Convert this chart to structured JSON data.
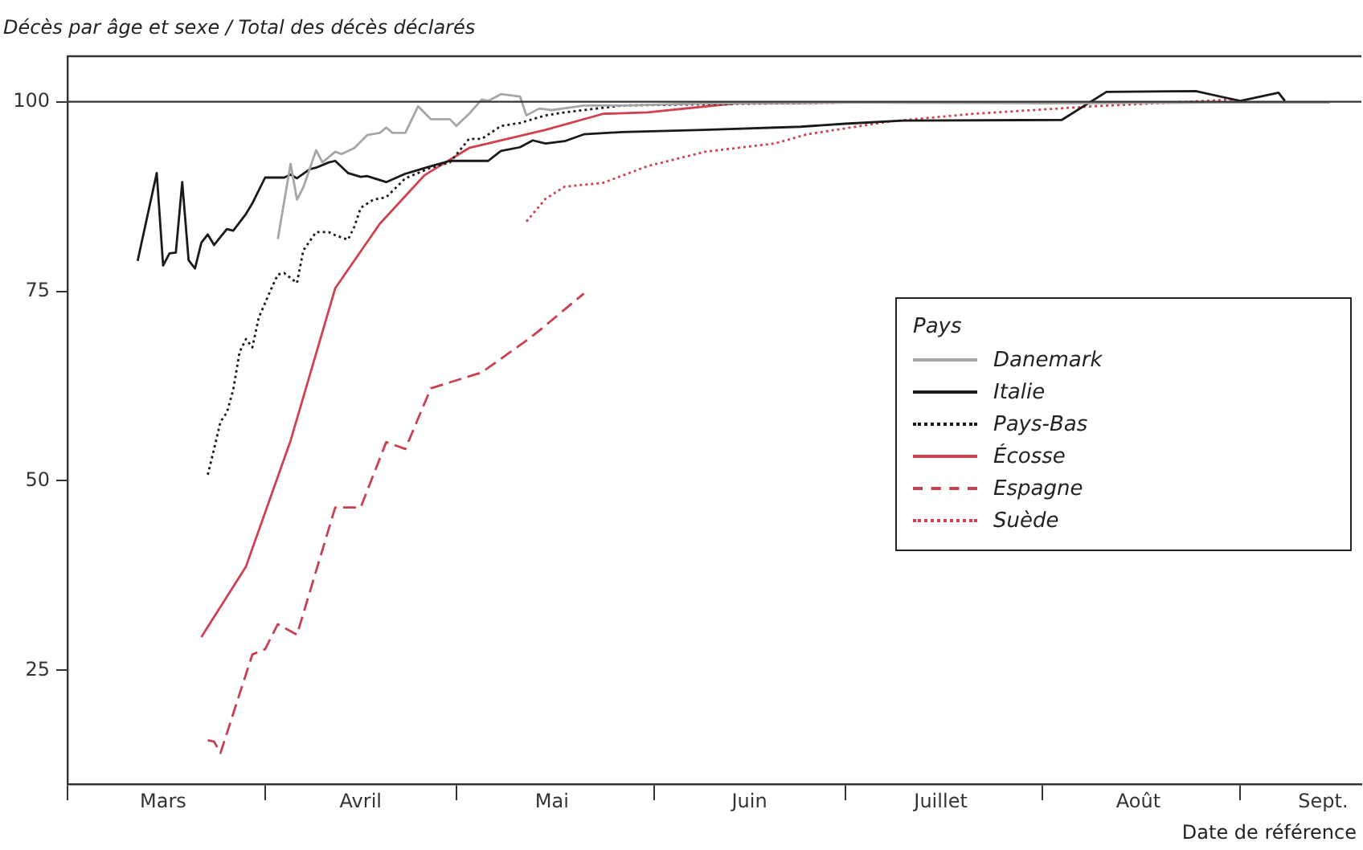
{
  "chart_data": {
    "type": "line",
    "title": "Décès par âge et sexe / Total des décès déclarés",
    "xlabel": "Date de référence",
    "legend_title": "Pays",
    "legend": "right",
    "grid": false,
    "marker": "none",
    "xlim": [
      "--03-01",
      "--09-20"
    ],
    "xticks": [
      {
        "value": "--03-01",
        "label": null
      },
      {
        "value": "--03-16",
        "label": "Mars"
      },
      {
        "value": "--04-01",
        "label": null
      },
      {
        "value": "--04-16",
        "label": "Avril"
      },
      {
        "value": "--05-01",
        "label": null
      },
      {
        "value": "--05-16",
        "label": "Mai"
      },
      {
        "value": "--06-01",
        "label": null
      },
      {
        "value": "--06-16",
        "label": "Juin"
      },
      {
        "value": "--07-01",
        "label": null
      },
      {
        "value": "--07-16",
        "label": "Juillet"
      },
      {
        "value": "--08-01",
        "label": null
      },
      {
        "value": "--08-16",
        "label": "Août"
      },
      {
        "value": "--09-01",
        "label": null
      },
      {
        "value": "--09-14",
        "label": "Sept."
      }
    ],
    "ylim": [
      10,
      106
    ],
    "yticks": [
      25,
      50,
      75,
      100
    ],
    "ref_lines": [
      {
        "axis": "y",
        "value": 100,
        "color": "#333333"
      }
    ],
    "series": [
      {
        "name": "Danemark",
        "color": "#a6a6a6",
        "line_style": "solid",
        "x": [
          "--04-03",
          "--04-05",
          "--04-06",
          "--04-07",
          "--04-09",
          "--04-10",
          "--04-12",
          "--04-13",
          "--04-15",
          "--04-17",
          "--04-19",
          "--04-20",
          "--04-21",
          "--04-23",
          "--04-25",
          "--04-27",
          "--04-30",
          "--05-01",
          "--05-03",
          "--05-05",
          "--05-06",
          "--05-08",
          "--05-11",
          "--05-12",
          "--05-14",
          "--05-16",
          "--05-21",
          "--05-27",
          "--06-10",
          "--07-01",
          "--08-01",
          "--09-01",
          "--09-15"
        ],
        "values": [
          81.9,
          91.8,
          87.1,
          88.7,
          93.6,
          92.0,
          93.4,
          93.1,
          93.9,
          95.6,
          95.9,
          96.6,
          95.9,
          95.9,
          99.4,
          97.7,
          97.7,
          96.8,
          98.4,
          100.3,
          100.1,
          101.0,
          100.7,
          98.2,
          99.1,
          98.9,
          99.5,
          99.5,
          99.8,
          99.9,
          99.8,
          99.9,
          99.9
        ]
      },
      {
        "name": "Italie",
        "color": "#1a1a1a",
        "line_style": "solid",
        "x": [
          "--03-12",
          "--03-15",
          "--03-16",
          "--03-17",
          "--03-18",
          "--03-19",
          "--03-20",
          "--03-21",
          "--03-22",
          "--03-23",
          "--03-24",
          "--03-26",
          "--03-27",
          "--03-29",
          "--03-30",
          "--04-01",
          "--04-04",
          "--04-05",
          "--04-06",
          "--04-08",
          "--04-09",
          "--04-11",
          "--04-12",
          "--04-14",
          "--04-16",
          "--04-17",
          "--04-20",
          "--04-23",
          "--04-27",
          "--04-30",
          "--05-06",
          "--05-08",
          "--05-11",
          "--05-13",
          "--05-15",
          "--05-18",
          "--05-21",
          "--05-27",
          "--06-09",
          "--06-24",
          "--07-01",
          "--07-10",
          "--08-04",
          "--08-11",
          "--08-25",
          "--09-01",
          "--09-07",
          "--09-08"
        ],
        "values": [
          79.0,
          90.6,
          78.4,
          80.0,
          80.1,
          89.4,
          79.1,
          78.0,
          81.4,
          82.5,
          81.1,
          83.2,
          83.0,
          85.2,
          86.6,
          90.0,
          90.0,
          90.4,
          89.9,
          91.1,
          91.3,
          92.0,
          92.2,
          90.6,
          90.1,
          90.2,
          89.4,
          90.5,
          91.5,
          92.2,
          92.2,
          93.5,
          94.0,
          94.9,
          94.5,
          94.8,
          95.7,
          96.0,
          96.3,
          96.7,
          97.1,
          97.5,
          97.6,
          101.3,
          101.4,
          100.1,
          101.2,
          100.1
        ]
      },
      {
        "name": "Pays-Bas",
        "color": "#1a1a1a",
        "line_style": "dotted",
        "x": [
          "--03-23",
          "--03-24",
          "--03-25",
          "--03-26",
          "--03-27",
          "--03-28",
          "--03-29",
          "--03-30",
          "--03-31",
          "--04-02",
          "--04-03",
          "--04-04",
          "--04-06",
          "--04-07",
          "--04-09",
          "--04-11",
          "--04-12",
          "--04-14",
          "--04-15",
          "--04-16",
          "--04-18",
          "--04-20",
          "--04-23",
          "--04-27",
          "--04-30",
          "--05-03",
          "--05-05",
          "--05-08",
          "--05-11",
          "--05-15",
          "--05-18",
          "--05-27",
          "--06-11",
          "--07-01",
          "--08-01",
          "--09-01",
          "--09-15"
        ],
        "values": [
          50.8,
          54.2,
          57.8,
          59.0,
          62.0,
          67.0,
          68.7,
          67.6,
          71.5,
          75.4,
          77.2,
          77.4,
          76.1,
          80.4,
          82.8,
          82.8,
          82.4,
          81.8,
          83.5,
          86.0,
          87.1,
          87.4,
          89.9,
          91.3,
          92.0,
          95.1,
          95.1,
          96.8,
          97.2,
          98.2,
          98.6,
          99.5,
          99.7,
          99.9,
          99.9,
          99.9,
          99.9
        ]
      },
      {
        "name": "Écosse",
        "color": "#d0404f",
        "line_style": "solid",
        "x": [
          "--03-22",
          "--03-29",
          "--04-05",
          "--04-12",
          "--04-19",
          "--04-26",
          "--05-03",
          "--05-15",
          "--05-24",
          "--05-31",
          "--06-14",
          "--07-03",
          "--08-03"
        ],
        "values": [
          29.4,
          38.7,
          55.3,
          75.4,
          83.9,
          90.3,
          93.9,
          96.3,
          98.4,
          98.6,
          99.8,
          99.9,
          99.9
        ]
      },
      {
        "name": "Espagne",
        "color": "#c8404f",
        "line_style": "dashed",
        "x": [
          "--03-23",
          "--03-24",
          "--03-25",
          "--03-30",
          "--04-01",
          "--04-03",
          "--04-06",
          "--04-12",
          "--04-16",
          "--04-20",
          "--04-23",
          "--04-27",
          "--05-05",
          "--05-07",
          "--05-12",
          "--05-14",
          "--05-21"
        ],
        "values": [
          15.8,
          15.6,
          14.1,
          27.1,
          27.8,
          31.1,
          29.7,
          46.5,
          46.5,
          55.1,
          54.2,
          62.2,
          64.3,
          65.5,
          68.5,
          69.8,
          74.7
        ]
      },
      {
        "name": "Suède",
        "color": "#d0404f",
        "line_style": "dotted",
        "x": [
          "--05-12",
          "--05-15",
          "--05-18",
          "--05-24",
          "--05-31",
          "--06-09",
          "--06-20",
          "--06-25",
          "--07-08",
          "--07-21",
          "--08-09",
          "--08-31"
        ],
        "values": [
          84.2,
          87.2,
          88.8,
          89.3,
          91.5,
          93.4,
          94.5,
          95.7,
          97.4,
          98.4,
          99.4,
          100.3
        ]
      }
    ]
  }
}
